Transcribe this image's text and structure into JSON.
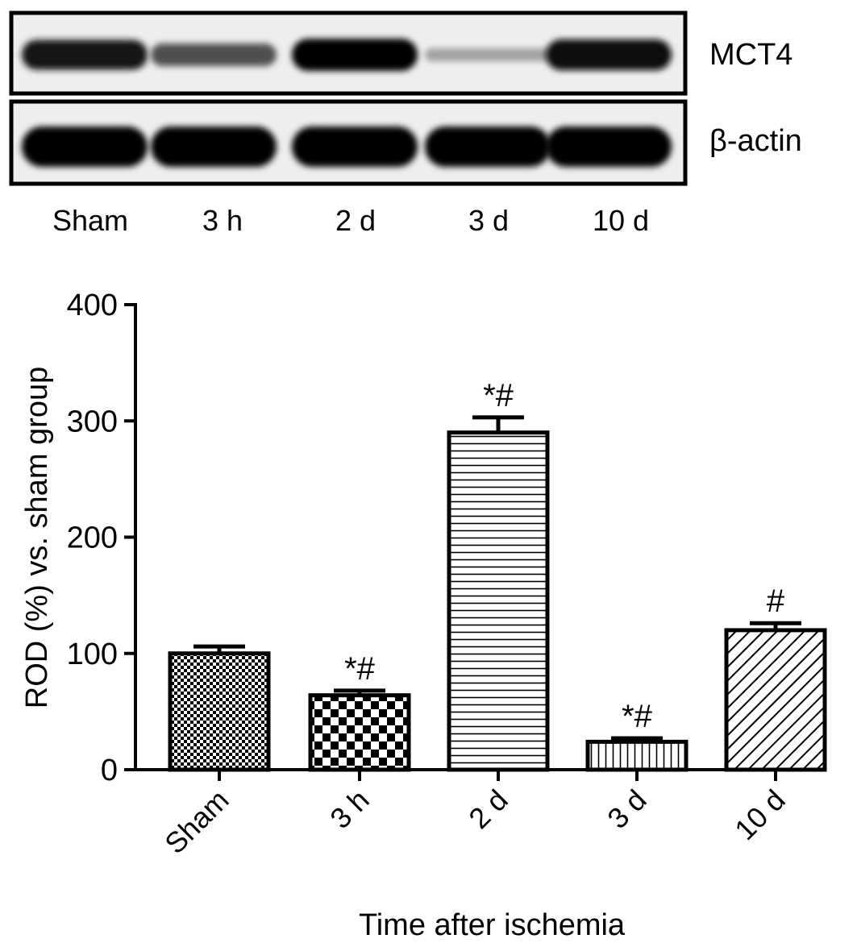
{
  "blot": {
    "lanes": [
      "Sham",
      "3 h",
      "2 d",
      "3 d",
      "10 d"
    ],
    "rows": [
      {
        "label": "MCT4",
        "intensity": [
          0.9,
          0.6,
          1.0,
          0.2,
          0.95
        ]
      },
      {
        "label": "β-actin",
        "intensity": [
          1.0,
          1.0,
          1.0,
          1.0,
          1.0
        ]
      }
    ]
  },
  "chart_data": {
    "type": "bar",
    "categories": [
      "Sham",
      "3 h",
      "2 d",
      "3 d",
      "10 d"
    ],
    "values": [
      100,
      64,
      290,
      24,
      120
    ],
    "errors": [
      6,
      4,
      13,
      3,
      6
    ],
    "annotations": [
      "",
      "*#",
      "*#",
      "*#",
      "#"
    ],
    "patterns": [
      "fine-checker",
      "coarse-checker",
      "horizontal-lines",
      "vertical-lines",
      "diagonal-lines"
    ],
    "xlabel": "Time after ischemia",
    "ylabel": "ROD (%) vs. sham group",
    "ylim": [
      0,
      400
    ],
    "yticks": [
      0,
      100,
      200,
      300,
      400
    ],
    "grid": false
  }
}
